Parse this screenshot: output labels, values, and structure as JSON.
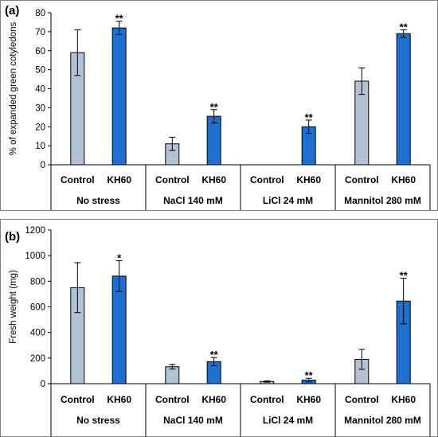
{
  "chart_data": [
    {
      "type": "bar",
      "panel_label": "(a)",
      "ylabel": "% of expanded green cotyledons",
      "ylim": [
        0,
        80
      ],
      "ytick_step": 10,
      "yticks": [
        "0",
        "10",
        "20",
        "30",
        "40",
        "50",
        "60",
        "70",
        "80"
      ],
      "groups": [
        "No stress",
        "NaCl 140 mM",
        "LiCl 24 mM",
        "Mannitol 280 mM"
      ],
      "categories": [
        "Control",
        "KH60"
      ],
      "colors": {
        "Control": "#b4c2d6",
        "KH60": "#1f6fd1"
      },
      "bars": [
        {
          "group": "No stress",
          "category": "Control",
          "value": 59,
          "error": 12,
          "sig": ""
        },
        {
          "group": "No stress",
          "category": "KH60",
          "value": 72,
          "error": 3.5,
          "sig": "**"
        },
        {
          "group": "NaCl 140 mM",
          "category": "Control",
          "value": 11,
          "error": 3.5,
          "sig": ""
        },
        {
          "group": "NaCl 140 mM",
          "category": "KH60",
          "value": 25.5,
          "error": 3.5,
          "sig": "**"
        },
        {
          "group": "LiCl 24 mM",
          "category": "Control",
          "value": 0,
          "error": 0,
          "sig": ""
        },
        {
          "group": "LiCl 24 mM",
          "category": "KH60",
          "value": 20,
          "error": 3.5,
          "sig": "**"
        },
        {
          "group": "Mannitol 280 mM",
          "category": "Control",
          "value": 44,
          "error": 7,
          "sig": ""
        },
        {
          "group": "Mannitol 280 mM",
          "category": "KH60",
          "value": 69,
          "error": 2,
          "sig": "**"
        }
      ]
    },
    {
      "type": "bar",
      "panel_label": "(b)",
      "ylabel": "Fresh weight (mg)",
      "ylim": [
        0,
        1200
      ],
      "ytick_step": 200,
      "yticks": [
        "0",
        "200",
        "400",
        "600",
        "800",
        "1000",
        "1200"
      ],
      "groups": [
        "No stress",
        "NaCl 140 mM",
        "LiCl 24 mM",
        "Mannitol 280 mM"
      ],
      "categories": [
        "Control",
        "KH60"
      ],
      "colors": {
        "Control": "#b4c2d6",
        "KH60": "#1f6fd1"
      },
      "bars": [
        {
          "group": "No stress",
          "category": "Control",
          "value": 750,
          "error": 195,
          "sig": ""
        },
        {
          "group": "No stress",
          "category": "KH60",
          "value": 840,
          "error": 120,
          "sig": "*"
        },
        {
          "group": "NaCl 140 mM",
          "category": "Control",
          "value": 132,
          "error": 18,
          "sig": ""
        },
        {
          "group": "NaCl 140 mM",
          "category": "KH60",
          "value": 172,
          "error": 32,
          "sig": "**"
        },
        {
          "group": "LiCl 24 mM",
          "category": "Control",
          "value": 17,
          "error": 5,
          "sig": ""
        },
        {
          "group": "LiCl 24 mM",
          "category": "KH60",
          "value": 28,
          "error": 14,
          "sig": "**"
        },
        {
          "group": "Mannitol 280 mM",
          "category": "Control",
          "value": 190,
          "error": 78,
          "sig": ""
        },
        {
          "group": "Mannitol 280 mM",
          "category": "KH60",
          "value": 645,
          "error": 178,
          "sig": "**"
        }
      ]
    }
  ]
}
